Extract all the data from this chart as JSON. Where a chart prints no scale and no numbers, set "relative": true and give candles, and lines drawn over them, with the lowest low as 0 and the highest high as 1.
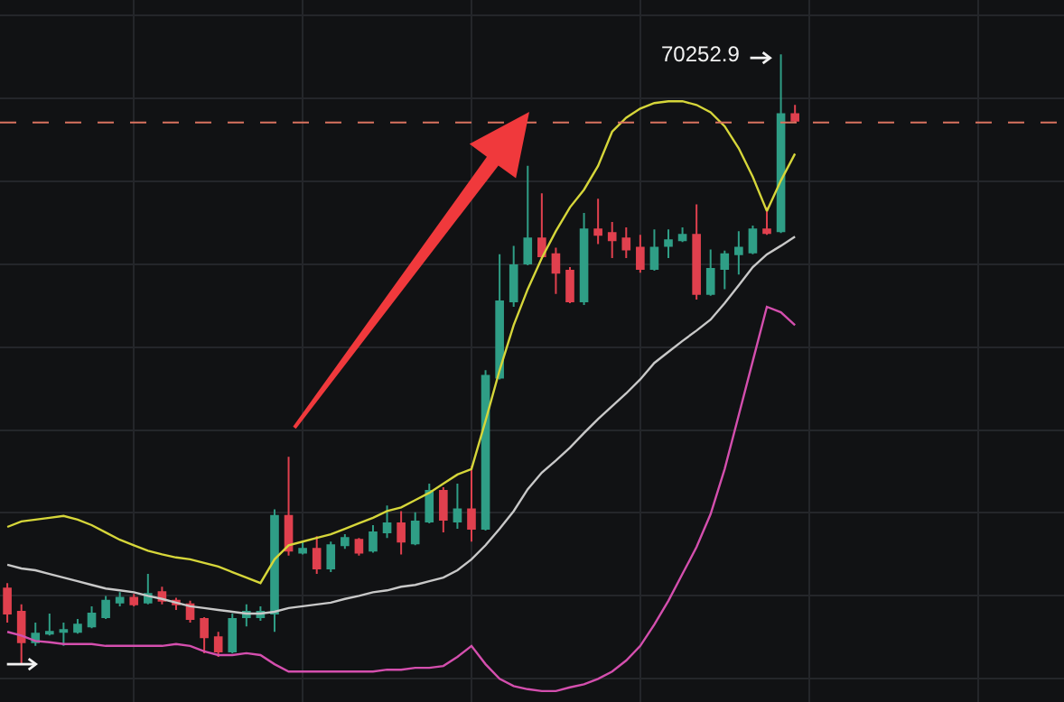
{
  "chart_data": {
    "type": "candlestick",
    "relative": true,
    "grid": true,
    "categories": [
      null,
      null,
      null,
      null,
      null,
      null,
      null,
      null,
      null,
      null,
      null,
      null,
      null,
      null,
      null,
      null,
      null,
      null,
      null,
      null,
      null,
      null,
      null,
      null,
      null,
      null,
      null,
      null,
      null,
      null,
      null,
      null,
      null,
      null,
      null,
      null,
      null,
      null,
      null,
      null,
      null,
      null,
      null,
      null,
      null,
      null,
      null,
      null,
      null,
      null,
      null,
      null,
      null,
      null,
      null,
      null,
      null
    ],
    "ohlc": [
      [
        0.124,
        0.133,
        0.068,
        0.083
      ],
      [
        0.086,
        0.098,
        0,
        0.036
      ],
      [
        0.036,
        0.068,
        0.03,
        0.05
      ],
      [
        0.05,
        0.083,
        0.047,
        0.053
      ],
      [
        0.053,
        0.068,
        0.03,
        0.056
      ],
      [
        0.053,
        0.074,
        0.05,
        0.065
      ],
      [
        0.062,
        0.095,
        0.059,
        0.083
      ],
      [
        0.077,
        0.112,
        0.074,
        0.104
      ],
      [
        0.101,
        0.118,
        0.095,
        0.109
      ],
      [
        0.109,
        0.115,
        0.095,
        0.098
      ],
      [
        0.101,
        0.148,
        0.098,
        0.115
      ],
      [
        0.118,
        0.127,
        0.098,
        0.104
      ],
      [
        0.104,
        0.109,
        0.089,
        0.098
      ],
      [
        0.098,
        0.104,
        0.068,
        0.074
      ],
      [
        0.074,
        0.077,
        0.018,
        0.044
      ],
      [
        0.044,
        0.053,
        0.012,
        0.021
      ],
      [
        0.021,
        0.083,
        0.018,
        0.074
      ],
      [
        0.077,
        0.098,
        0.062,
        0.086
      ],
      [
        0.077,
        0.095,
        0.071,
        0.086
      ],
      [
        0.083,
        0.254,
        0.053,
        0.243
      ],
      [
        0.243,
        0.34,
        0.178,
        0.186
      ],
      [
        0.183,
        0.201,
        0.18,
        0.189
      ],
      [
        0.189,
        0.21,
        0.148,
        0.157
      ],
      [
        0.157,
        0.201,
        0.151,
        0.195
      ],
      [
        0.195,
        0.213,
        0.189,
        0.207
      ],
      [
        0.204,
        0.207,
        0.178,
        0.183
      ],
      [
        0.186,
        0.228,
        0.183,
        0.216
      ],
      [
        0.216,
        0.26,
        0.207,
        0.231
      ],
      [
        0.231,
        0.251,
        0.18,
        0.201
      ],
      [
        0.198,
        0.249,
        0.195,
        0.234
      ],
      [
        0.234,
        0.296,
        0.231,
        0.284
      ],
      [
        0.284,
        0.29,
        0.216,
        0.237
      ],
      [
        0.234,
        0.296,
        0.222,
        0.254
      ],
      [
        0.254,
        0.325,
        0.201,
        0.222
      ],
      [
        0.222,
        0.482,
        0.219,
        0.473
      ],
      [
        0.47,
        0.672,
        0.467,
        0.595
      ],
      [
        0.595,
        0.686,
        0.586,
        0.654
      ],
      [
        0.657,
        0.817,
        0.654,
        0.698
      ],
      [
        0.698,
        0.772,
        0.666,
        0.669
      ],
      [
        0.672,
        0.683,
        0.607,
        0.642
      ],
      [
        0.645,
        0.651,
        0.592,
        0.595
      ],
      [
        0.595,
        0.74,
        0.589,
        0.713
      ],
      [
        0.713,
        0.763,
        0.689,
        0.704
      ],
      [
        0.707,
        0.725,
        0.666,
        0.695
      ],
      [
        0.698,
        0.716,
        0.666,
        0.68
      ],
      [
        0.683,
        0.704,
        0.642,
        0.648
      ],
      [
        0.648,
        0.713,
        0.645,
        0.683
      ],
      [
        0.686,
        0.713,
        0.666,
        0.695
      ],
      [
        0.695,
        0.716,
        0.692,
        0.704
      ],
      [
        0.704,
        0.754,
        0.598,
        0.607
      ],
      [
        0.607,
        0.68,
        0.604,
        0.648
      ],
      [
        0.648,
        0.678,
        0.615,
        0.672
      ],
      [
        0.672,
        0.71,
        0.639,
        0.683
      ],
      [
        0.675,
        0.719,
        0.672,
        0.713
      ],
      [
        0.713,
        0.749,
        0.704,
        0.707
      ],
      [
        0.71,
        1,
        0.707,
        0.902
      ],
      [
        0.902,
        0.917,
        0.888,
        0.891
      ]
    ],
    "colors": [
      "#e0404e",
      "#e0404e",
      "#2f9e86",
      "#2f9e86",
      "#2f9e86",
      "#2f9e86",
      "#2f9e86",
      "#2f9e86",
      "#2f9e86",
      "#e0404e",
      "#2f9e86",
      "#e0404e",
      "#e0404e",
      "#e0404e",
      "#e0404e",
      "#e0404e",
      "#2f9e86",
      "#2f9e86",
      "#2f9e86",
      "#2f9e86",
      "#e0404e",
      "#2f9e86",
      "#e0404e",
      "#2f9e86",
      "#2f9e86",
      "#e0404e",
      "#2f9e86",
      "#2f9e86",
      "#e0404e",
      "#2f9e86",
      "#2f9e86",
      "#e0404e",
      "#2f9e86",
      "#e0404e",
      "#2f9e86",
      "#2f9e86",
      "#2f9e86",
      "#2f9e86",
      "#e0404e",
      "#e0404e",
      "#e0404e",
      "#2f9e86",
      "#e0404e",
      "#e0404e",
      "#e0404e",
      "#e0404e",
      "#2f9e86",
      "#2f9e86",
      "#2f9e86",
      "#e0404e",
      "#2f9e86",
      "#2f9e86",
      "#2f9e86",
      "#2f9e86",
      "#e0404e",
      "#2f9e86",
      "#e0404e"
    ],
    "series": [
      {
        "type": "line",
        "color": "#d6d63a",
        "values": [
          0.225,
          0.234,
          0.237,
          0.24,
          0.243,
          0.237,
          0.228,
          0.216,
          0.204,
          0.195,
          0.186,
          0.18,
          0.175,
          0.172,
          0.166,
          0.16,
          0.151,
          0.142,
          0.133,
          0.172,
          0.195,
          0.201,
          0.207,
          0.213,
          0.222,
          0.231,
          0.24,
          0.251,
          0.257,
          0.269,
          0.281,
          0.296,
          0.311,
          0.32,
          0.399,
          0.482,
          0.556,
          0.615,
          0.666,
          0.71,
          0.749,
          0.778,
          0.817,
          0.873,
          0.896,
          0.911,
          0.92,
          0.923,
          0.923,
          0.917,
          0.905,
          0.882,
          0.846,
          0.799,
          0.743,
          0.793,
          0.837
        ]
      },
      {
        "type": "line",
        "color": "#c8c8c8",
        "values": [
          0.163,
          0.157,
          0.154,
          0.148,
          0.142,
          0.136,
          0.13,
          0.124,
          0.121,
          0.118,
          0.112,
          0.107,
          0.101,
          0.095,
          0.092,
          0.089,
          0.086,
          0.083,
          0.083,
          0.086,
          0.092,
          0.095,
          0.098,
          0.101,
          0.107,
          0.112,
          0.118,
          0.121,
          0.127,
          0.13,
          0.136,
          0.142,
          0.154,
          0.172,
          0.195,
          0.222,
          0.251,
          0.287,
          0.314,
          0.334,
          0.355,
          0.379,
          0.402,
          0.423,
          0.444,
          0.467,
          0.494,
          0.512,
          0.53,
          0.547,
          0.565,
          0.592,
          0.621,
          0.651,
          0.672,
          0.686,
          0.701
        ]
      },
      {
        "type": "line",
        "color": "#d44fae",
        "values": [
          0.053,
          0.047,
          0.038,
          0.036,
          0.033,
          0.033,
          0.033,
          0.03,
          0.03,
          0.03,
          0.03,
          0.03,
          0.033,
          0.03,
          0.021,
          0.015,
          0.015,
          0.018,
          0.015,
          0,
          -0.012,
          -0.012,
          -0.012,
          -0.012,
          -0.012,
          -0.012,
          -0.012,
          -0.009,
          -0.009,
          -0.006,
          -0.006,
          -0.003,
          0.012,
          0.03,
          0,
          -0.024,
          -0.036,
          -0.041,
          -0.044,
          -0.044,
          -0.038,
          -0.033,
          -0.024,
          -0.012,
          0.006,
          0.03,
          0.065,
          0.104,
          0.148,
          0.192,
          0.246,
          0.32,
          0.408,
          0.497,
          0.586,
          0.577,
          0.556
        ]
      }
    ],
    "ref_lines": [
      {
        "axis": "y",
        "value": 0.888,
        "color": "#d9735f",
        "line_style": "dashed"
      }
    ],
    "annotations": [
      "70252.9"
    ]
  }
}
